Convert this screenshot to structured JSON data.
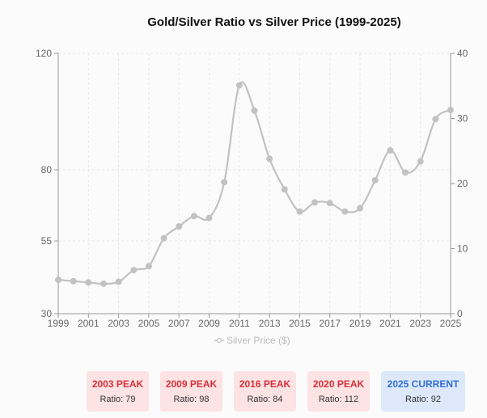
{
  "chart_data": {
    "type": "line",
    "title": "Gold/Silver Ratio vs Silver Price (1999-2025)",
    "x": [
      1999,
      2000,
      2001,
      2002,
      2003,
      2004,
      2005,
      2006,
      2007,
      2008,
      2009,
      2010,
      2011,
      2012,
      2013,
      2014,
      2015,
      2016,
      2017,
      2018,
      2019,
      2020,
      2021,
      2022,
      2023,
      2024,
      2025
    ],
    "series": [
      {
        "name": "Silver Price ($)",
        "axis": "right",
        "values": [
          5.2,
          5.0,
          4.8,
          4.6,
          4.9,
          6.7,
          7.3,
          11.6,
          13.4,
          15.0,
          14.7,
          20.2,
          35.1,
          31.2,
          23.8,
          19.1,
          15.7,
          17.1,
          17.0,
          15.7,
          16.2,
          20.5,
          25.1,
          21.7,
          23.4,
          29.9,
          31.3
        ]
      }
    ],
    "x_ticks": [
      "1999",
      "2001",
      "2003",
      "2005",
      "2007",
      "2009",
      "2011",
      "2013",
      "2015",
      "2017",
      "2019",
      "2021",
      "2023",
      "2025"
    ],
    "y_left_ticks": [
      "30",
      "55",
      "80",
      "120"
    ],
    "y_right_ticks": [
      "0",
      "10",
      "20",
      "30",
      "40"
    ],
    "ylim_left": [
      30,
      120
    ],
    "ylim_right": [
      0,
      40
    ],
    "legend_position": "bottom",
    "grid": true,
    "series_color": "#c2c2c2"
  },
  "peaks": [
    {
      "title": "2003 PEAK",
      "ratio": "Ratio: 79",
      "style": "red"
    },
    {
      "title": "2009 PEAK",
      "ratio": "Ratio: 98",
      "style": "red"
    },
    {
      "title": "2016 PEAK",
      "ratio": "Ratio: 84",
      "style": "red"
    },
    {
      "title": "2020 PEAK",
      "ratio": "Ratio: 112",
      "style": "red"
    },
    {
      "title": "2025 CURRENT",
      "ratio": "Ratio: 92",
      "style": "blue"
    }
  ],
  "colors": {
    "peak_red_text": "#d9303b",
    "peak_red_bg": "#fde3e3",
    "current_blue_text": "#2f6fd6",
    "current_blue_bg": "#dde9fb"
  }
}
